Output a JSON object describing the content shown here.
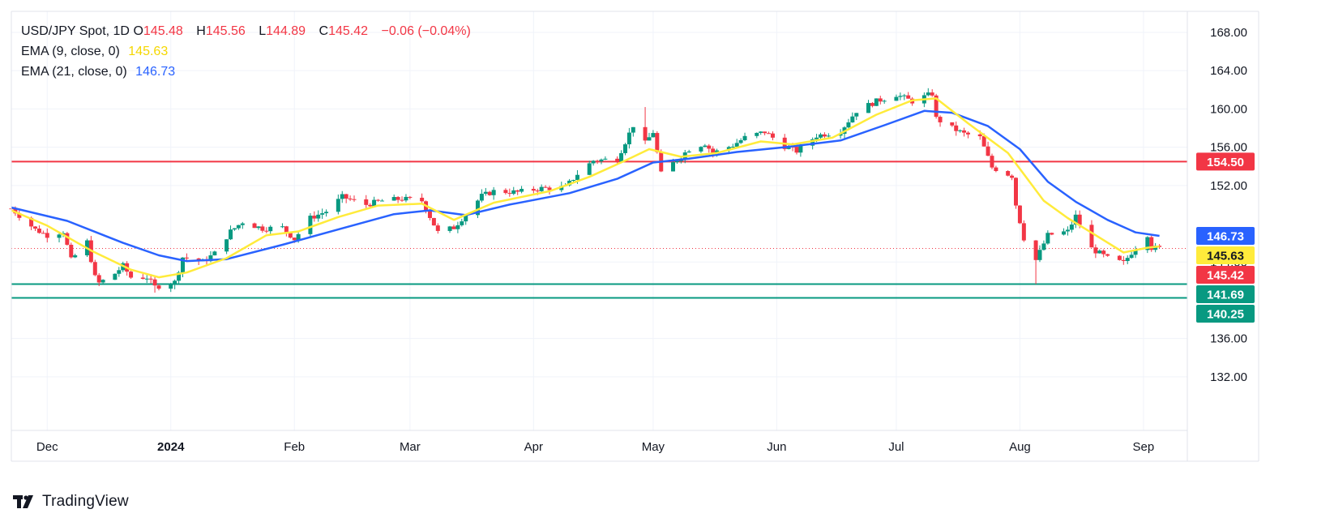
{
  "legend": {
    "symbol": "USD/JPY Spot, 1D",
    "open_label": "O",
    "open": "145.48",
    "high_label": "H",
    "high": "145.56",
    "low_label": "L",
    "low": "144.89",
    "close_label": "C",
    "close": "145.42",
    "change": "−0.06 (−0.04%)",
    "ema9_label": "EMA (9, close, 0)",
    "ema9_value": "145.63",
    "ema21_label": "EMA (21, close, 0)",
    "ema21_value": "146.73"
  },
  "branding": {
    "logo_text": "TradingView"
  },
  "colors": {
    "up": "#089981",
    "down": "#f23645",
    "ema9": "#ffeb3b",
    "ema21": "#2962ff",
    "resistance": "#f23645",
    "support": "#089981",
    "grid": "#f0f3fa",
    "axis_text": "#131722"
  },
  "chart_data": {
    "type": "candlestick",
    "x_axis_labels": [
      {
        "label": "Dec",
        "date": "2023-12-01"
      },
      {
        "label": "2024",
        "date": "2024-01-01"
      },
      {
        "label": "Feb",
        "date": "2024-02-01"
      },
      {
        "label": "Mar",
        "date": "2024-03-01"
      },
      {
        "label": "Apr",
        "date": "2024-04-01"
      },
      {
        "label": "May",
        "date": "2024-05-01"
      },
      {
        "label": "Jun",
        "date": "2024-06-01"
      },
      {
        "label": "Jul",
        "date": "2024-07-01"
      },
      {
        "label": "Aug",
        "date": "2024-08-01"
      },
      {
        "label": "Sep",
        "date": "2024-09-01"
      }
    ],
    "x_range": [
      "2023-11-22",
      "2024-09-12"
    ],
    "y_ticks": [
      "168.00",
      "164.00",
      "160.00",
      "156.00",
      "152.00",
      "144.00",
      "136.00",
      "132.00"
    ],
    "ylim": [
      126.4,
      170.2
    ],
    "price_labels": [
      {
        "value": 154.5,
        "text": "154.50",
        "color": "#f23645"
      },
      {
        "value": 146.73,
        "text": "146.73",
        "color": "#2962ff"
      },
      {
        "value": 145.63,
        "text": "145.63",
        "color": "#ffeb3b"
      },
      {
        "value": 145.42,
        "text": "145.42",
        "color": "#f23645"
      },
      {
        "value": 141.69,
        "text": "141.69",
        "color": "#089981"
      },
      {
        "value": 140.25,
        "text": "140.25",
        "color": "#089981"
      }
    ],
    "horizontal_lines": [
      {
        "value": 154.5,
        "color": "#f23645"
      },
      {
        "value": 141.69,
        "color": "#089981"
      },
      {
        "value": 140.25,
        "color": "#089981"
      }
    ],
    "last_price": 145.42,
    "close_path": [
      [
        "2023-11-22",
        149.6
      ],
      [
        "2023-11-28",
        147.4
      ],
      [
        "2023-12-01",
        146.8
      ],
      [
        "2023-12-05",
        147.2
      ],
      [
        "2023-12-07",
        144.2
      ],
      [
        "2023-12-11",
        146.1
      ],
      [
        "2023-12-13",
        142.4
      ],
      [
        "2023-12-14",
        141.8
      ],
      [
        "2023-12-18",
        142.8
      ],
      [
        "2023-12-20",
        143.6
      ],
      [
        "2023-12-22",
        142.4
      ],
      [
        "2023-12-26",
        142.4
      ],
      [
        "2023-12-28",
        141.4
      ],
      [
        "2024-01-02",
        141.9
      ],
      [
        "2024-01-04",
        144.5
      ],
      [
        "2024-01-09",
        144.0
      ],
      [
        "2024-01-12",
        144.9
      ],
      [
        "2024-01-16",
        147.2
      ],
      [
        "2024-01-19",
        148.2
      ],
      [
        "2024-01-24",
        147.5
      ],
      [
        "2024-01-29",
        147.6
      ],
      [
        "2024-02-01",
        146.4
      ],
      [
        "2024-02-05",
        148.6
      ],
      [
        "2024-02-09",
        149.3
      ],
      [
        "2024-02-13",
        150.8
      ],
      [
        "2024-02-19",
        150.0
      ],
      [
        "2024-02-23",
        150.4
      ],
      [
        "2024-02-28",
        150.6
      ],
      [
        "2024-03-04",
        150.4
      ],
      [
        "2024-03-08",
        147.1
      ],
      [
        "2024-03-12",
        147.6
      ],
      [
        "2024-03-15",
        149.0
      ],
      [
        "2024-03-19",
        150.9
      ],
      [
        "2024-03-22",
        151.4
      ],
      [
        "2024-03-28",
        151.3
      ],
      [
        "2024-04-03",
        151.7
      ],
      [
        "2024-04-09",
        151.8
      ],
      [
        "2024-04-12",
        153.2
      ],
      [
        "2024-04-16",
        154.6
      ],
      [
        "2024-04-22",
        154.8
      ],
      [
        "2024-04-26",
        158.3
      ],
      [
        "2024-04-29",
        156.4
      ],
      [
        "2024-05-01",
        157.6
      ],
      [
        "2024-05-03",
        153.2
      ],
      [
        "2024-05-07",
        154.7
      ],
      [
        "2024-05-10",
        155.8
      ],
      [
        "2024-05-14",
        156.4
      ],
      [
        "2024-05-16",
        155.4
      ],
      [
        "2024-05-21",
        156.2
      ],
      [
        "2024-05-24",
        157.0
      ],
      [
        "2024-05-29",
        157.6
      ],
      [
        "2024-06-03",
        156.1
      ],
      [
        "2024-06-06",
        155.6
      ],
      [
        "2024-06-11",
        157.2
      ],
      [
        "2024-06-17",
        157.7
      ],
      [
        "2024-06-21",
        159.8
      ],
      [
        "2024-06-26",
        160.8
      ],
      [
        "2024-07-01",
        161.5
      ],
      [
        "2024-07-05",
        160.8
      ],
      [
        "2024-07-10",
        161.6
      ],
      [
        "2024-07-11",
        159.0
      ],
      [
        "2024-07-15",
        158.0
      ],
      [
        "2024-07-18",
        157.4
      ],
      [
        "2024-07-22",
        157.0
      ],
      [
        "2024-07-25",
        153.9
      ],
      [
        "2024-07-30",
        153.0
      ],
      [
        "2024-07-31",
        150.0
      ],
      [
        "2024-08-02",
        146.5
      ],
      [
        "2024-08-05",
        144.2
      ],
      [
        "2024-08-08",
        146.8
      ],
      [
        "2024-08-13",
        147.2
      ],
      [
        "2024-08-15",
        148.8
      ],
      [
        "2024-08-19",
        145.4
      ],
      [
        "2024-08-23",
        144.4
      ],
      [
        "2024-08-27",
        143.9
      ],
      [
        "2024-08-29",
        145.0
      ],
      [
        "2024-09-02",
        146.9
      ],
      [
        "2024-09-03",
        145.5
      ],
      [
        "2024-09-05",
        145.42
      ]
    ],
    "ema9_path": [
      [
        "2023-11-22",
        149.4
      ],
      [
        "2023-12-01",
        147.8
      ],
      [
        "2023-12-12",
        145.2
      ],
      [
        "2023-12-22",
        143.2
      ],
      [
        "2023-12-29",
        142.4
      ],
      [
        "2024-01-05",
        142.9
      ],
      [
        "2024-01-15",
        144.4
      ],
      [
        "2024-01-25",
        146.8
      ],
      [
        "2024-02-02",
        147.2
      ],
      [
        "2024-02-12",
        148.7
      ],
      [
        "2024-02-22",
        149.9
      ],
      [
        "2024-03-04",
        150.1
      ],
      [
        "2024-03-12",
        148.4
      ],
      [
        "2024-03-22",
        150.2
      ],
      [
        "2024-04-05",
        151.4
      ],
      [
        "2024-04-15",
        152.9
      ],
      [
        "2024-04-24",
        154.6
      ],
      [
        "2024-04-30",
        155.8
      ],
      [
        "2024-05-08",
        155.0
      ],
      [
        "2024-05-17",
        155.4
      ],
      [
        "2024-05-28",
        156.6
      ],
      [
        "2024-06-05",
        156.3
      ],
      [
        "2024-06-15",
        157.0
      ],
      [
        "2024-06-26",
        159.4
      ],
      [
        "2024-07-05",
        160.9
      ],
      [
        "2024-07-11",
        161.1
      ],
      [
        "2024-07-19",
        158.5
      ],
      [
        "2024-07-29",
        155.4
      ],
      [
        "2024-08-07",
        150.4
      ],
      [
        "2024-08-13",
        148.6
      ],
      [
        "2024-08-20",
        146.8
      ],
      [
        "2024-08-27",
        145.0
      ],
      [
        "2024-09-02",
        145.5
      ],
      [
        "2024-09-05",
        145.63
      ]
    ],
    "ema21_path": [
      [
        "2023-11-22",
        149.7
      ],
      [
        "2023-12-06",
        148.3
      ],
      [
        "2023-12-20",
        146.0
      ],
      [
        "2023-12-29",
        144.7
      ],
      [
        "2024-01-05",
        144.1
      ],
      [
        "2024-01-15",
        144.3
      ],
      [
        "2024-01-29",
        145.8
      ],
      [
        "2024-02-12",
        147.4
      ],
      [
        "2024-02-26",
        149.0
      ],
      [
        "2024-03-06",
        149.4
      ],
      [
        "2024-03-15",
        148.9
      ],
      [
        "2024-03-26",
        150.0
      ],
      [
        "2024-04-10",
        151.2
      ],
      [
        "2024-04-22",
        152.7
      ],
      [
        "2024-05-01",
        154.4
      ],
      [
        "2024-05-10",
        154.8
      ],
      [
        "2024-05-22",
        155.5
      ],
      [
        "2024-06-03",
        156.0
      ],
      [
        "2024-06-17",
        156.7
      ],
      [
        "2024-06-28",
        158.3
      ],
      [
        "2024-07-08",
        159.8
      ],
      [
        "2024-07-15",
        159.6
      ],
      [
        "2024-07-24",
        158.2
      ],
      [
        "2024-08-01",
        155.8
      ],
      [
        "2024-08-08",
        152.4
      ],
      [
        "2024-08-15",
        150.3
      ],
      [
        "2024-08-23",
        148.4
      ],
      [
        "2024-08-30",
        147.1
      ],
      [
        "2024-09-05",
        146.73
      ]
    ],
    "title": "USD/JPY Spot, 1D",
    "xlabel": "",
    "ylabel": ""
  }
}
